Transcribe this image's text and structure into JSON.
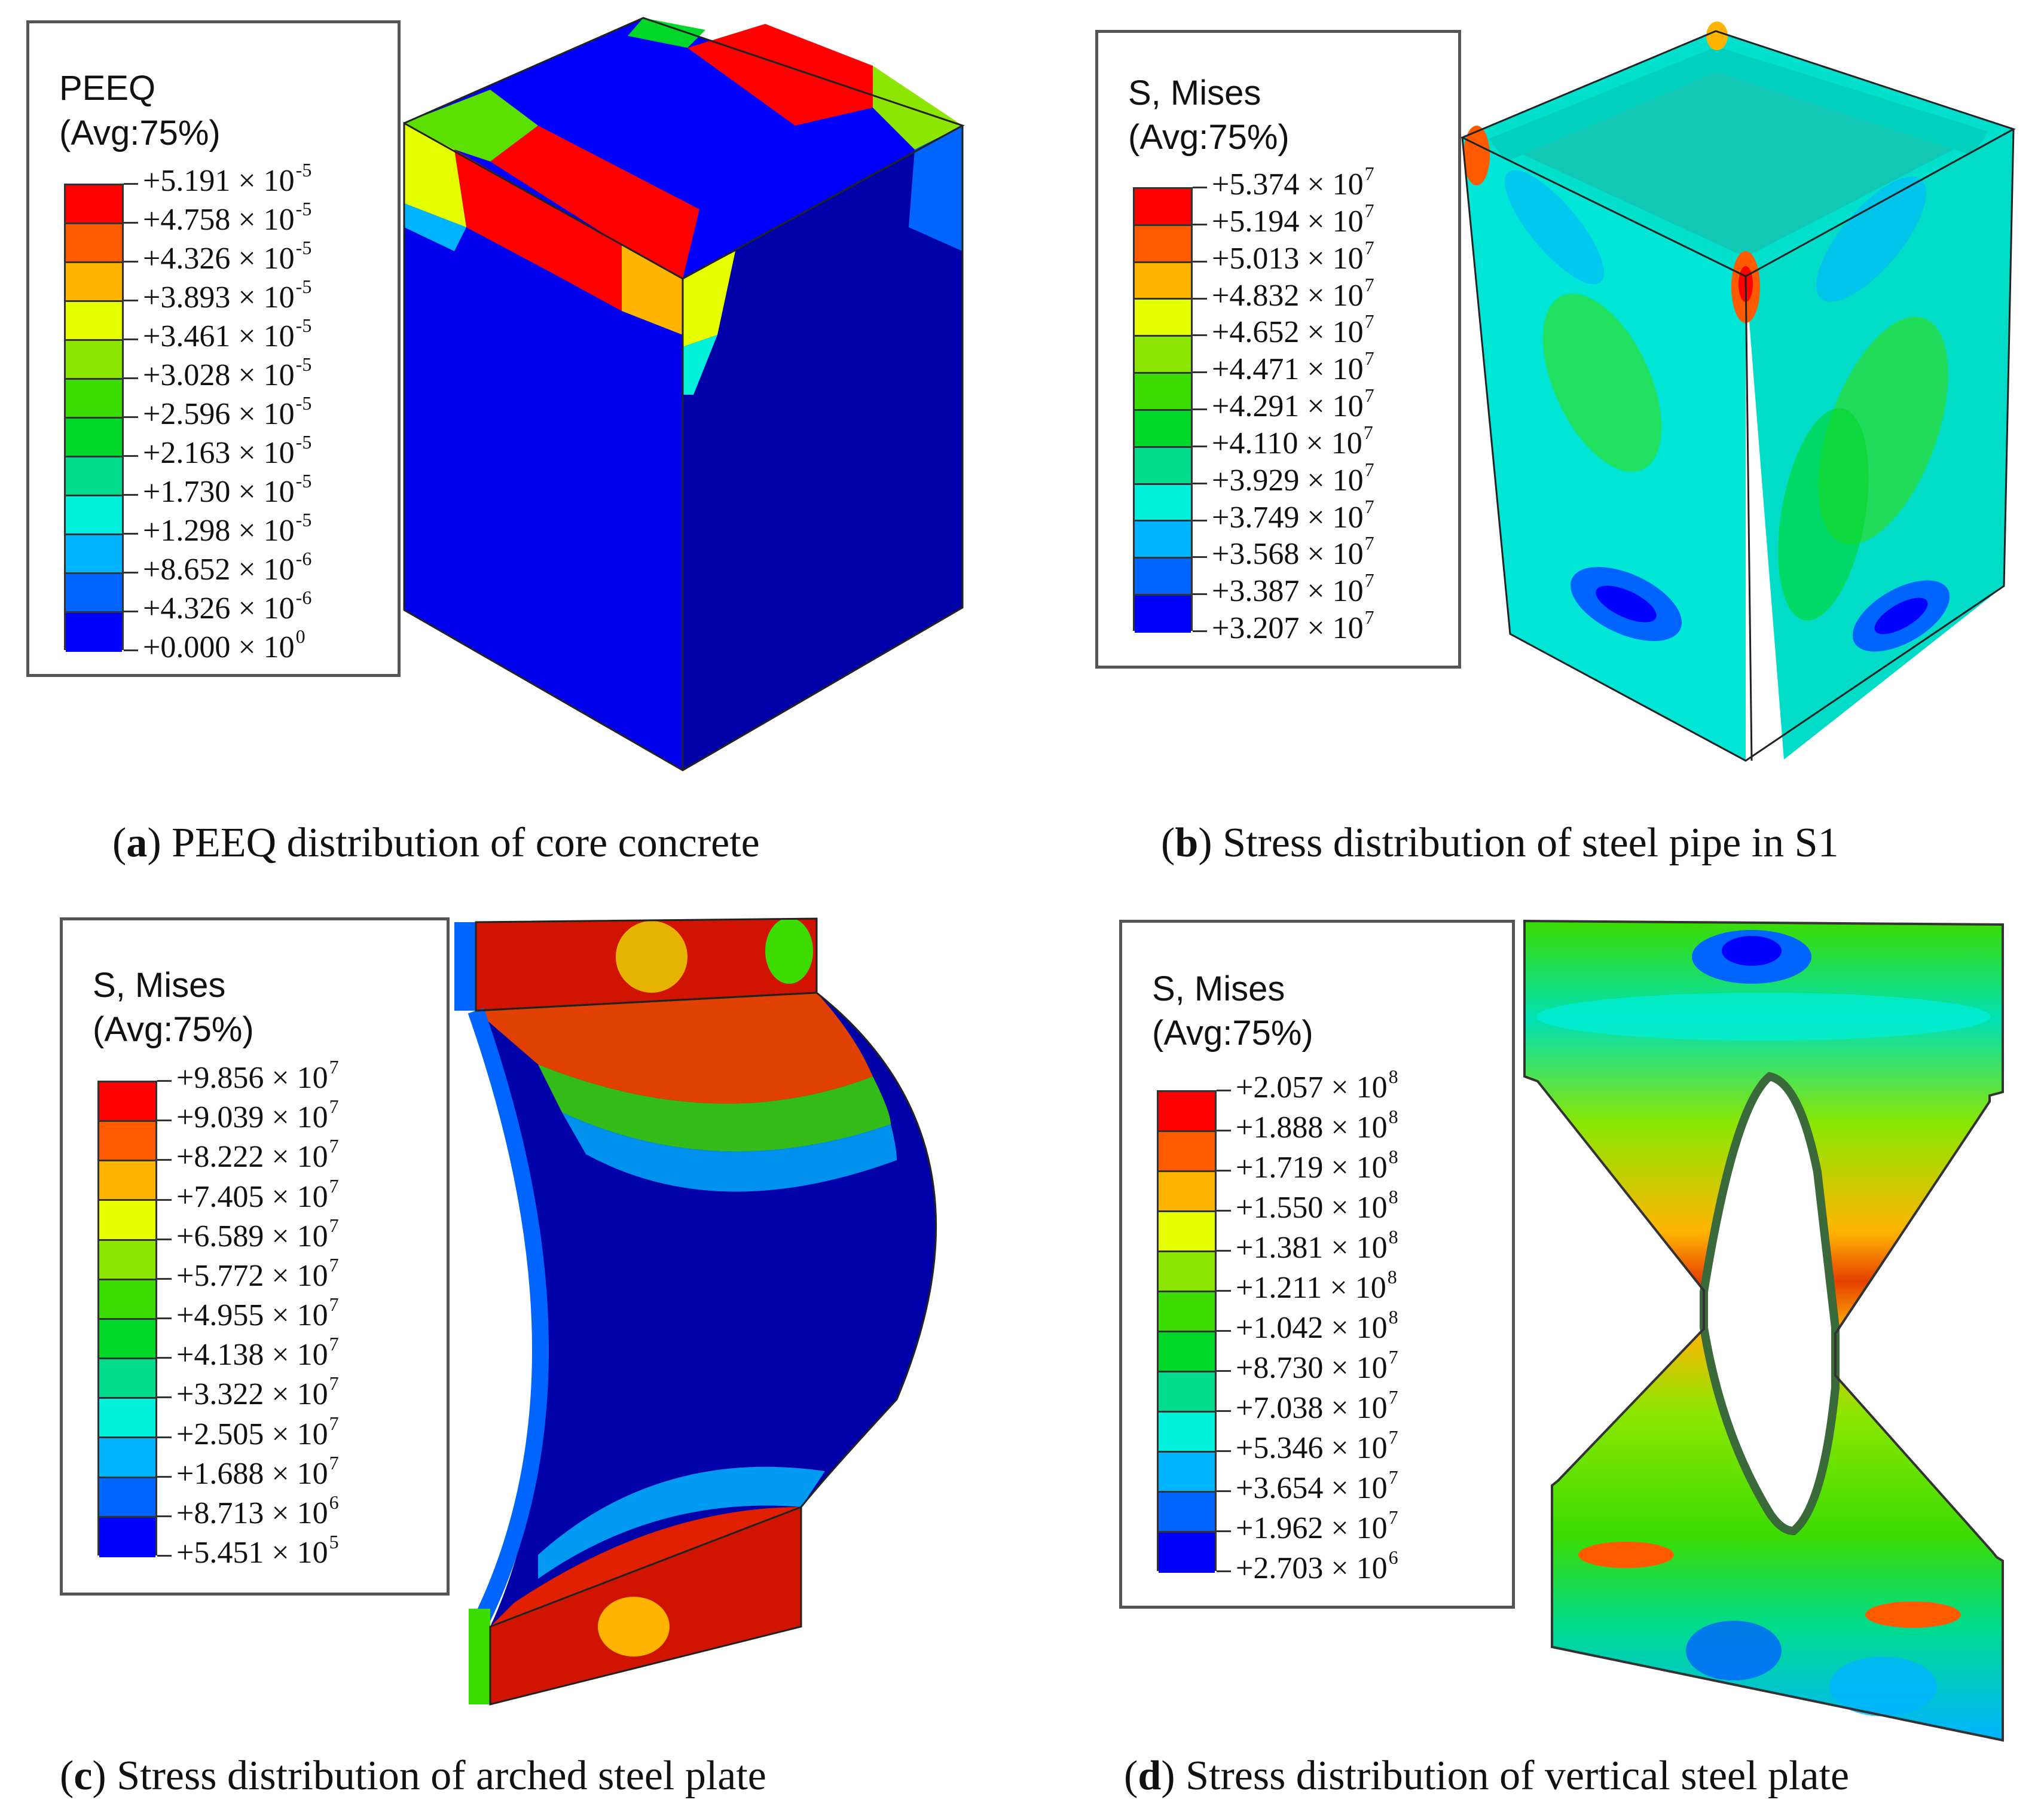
{
  "panels": [
    {
      "id": "a",
      "legend_title_1": "PEEQ",
      "legend_title_2": "(Avg:75%)",
      "caption_letter": "a",
      "caption_text": " PEEQ distribution of core concrete",
      "legend": [
        {
          "mantissa": "+5.191",
          "exp": "-5"
        },
        {
          "mantissa": "+4.758",
          "exp": "-5"
        },
        {
          "mantissa": "+4.326",
          "exp": "-5"
        },
        {
          "mantissa": "+3.893",
          "exp": "-5"
        },
        {
          "mantissa": "+3.461",
          "exp": "-5"
        },
        {
          "mantissa": "+3.028",
          "exp": "-5"
        },
        {
          "mantissa": "+2.596",
          "exp": "-5"
        },
        {
          "mantissa": "+2.163",
          "exp": "-5"
        },
        {
          "mantissa": "+1.730",
          "exp": "-5"
        },
        {
          "mantissa": "+1.298",
          "exp": "-5"
        },
        {
          "mantissa": "+8.652",
          "exp": "-6"
        },
        {
          "mantissa": "+4.326",
          "exp": "-6"
        },
        {
          "mantissa": "+0.000",
          "exp": "0"
        }
      ]
    },
    {
      "id": "b",
      "legend_title_1": "S, Mises",
      "legend_title_2": "(Avg:75%)",
      "caption_letter": "b",
      "caption_text": " Stress distribution of steel pipe in S1",
      "legend": [
        {
          "mantissa": "+5.374",
          "exp": "7"
        },
        {
          "mantissa": "+5.194",
          "exp": "7"
        },
        {
          "mantissa": "+5.013",
          "exp": "7"
        },
        {
          "mantissa": "+4.832",
          "exp": "7"
        },
        {
          "mantissa": "+4.652",
          "exp": "7"
        },
        {
          "mantissa": "+4.471",
          "exp": "7"
        },
        {
          "mantissa": "+4.291",
          "exp": "7"
        },
        {
          "mantissa": "+4.110",
          "exp": "7"
        },
        {
          "mantissa": "+3.929",
          "exp": "7"
        },
        {
          "mantissa": "+3.749",
          "exp": "7"
        },
        {
          "mantissa": "+3.568",
          "exp": "7"
        },
        {
          "mantissa": "+3.387",
          "exp": "7"
        },
        {
          "mantissa": "+3.207",
          "exp": "7"
        }
      ]
    },
    {
      "id": "c",
      "legend_title_1": "S, Mises",
      "legend_title_2": "(Avg:75%)",
      "caption_letter": "c",
      "caption_text": " Stress distribution of arched steel plate",
      "legend": [
        {
          "mantissa": "+9.856",
          "exp": "7"
        },
        {
          "mantissa": "+9.039",
          "exp": "7"
        },
        {
          "mantissa": "+8.222",
          "exp": "7"
        },
        {
          "mantissa": "+7.405",
          "exp": "7"
        },
        {
          "mantissa": "+6.589",
          "exp": "7"
        },
        {
          "mantissa": "+5.772",
          "exp": "7"
        },
        {
          "mantissa": "+4.955",
          "exp": "7"
        },
        {
          "mantissa": "+4.138",
          "exp": "7"
        },
        {
          "mantissa": "+3.322",
          "exp": "7"
        },
        {
          "mantissa": "+2.505",
          "exp": "7"
        },
        {
          "mantissa": "+1.688",
          "exp": "7"
        },
        {
          "mantissa": "+8.713",
          "exp": "6"
        },
        {
          "mantissa": "+5.451",
          "exp": "5"
        }
      ]
    },
    {
      "id": "d",
      "legend_title_1": "S, Mises",
      "legend_title_2": "(Avg:75%)",
      "caption_letter": "d",
      "caption_text": " Stress distribution of vertical steel plate",
      "legend": [
        {
          "mantissa": "+2.057",
          "exp": "8"
        },
        {
          "mantissa": "+1.888",
          "exp": "8"
        },
        {
          "mantissa": "+1.719",
          "exp": "8"
        },
        {
          "mantissa": "+1.550",
          "exp": "8"
        },
        {
          "mantissa": "+1.381",
          "exp": "8"
        },
        {
          "mantissa": "+1.211",
          "exp": "8"
        },
        {
          "mantissa": "+1.042",
          "exp": "8"
        },
        {
          "mantissa": "+8.730",
          "exp": "7"
        },
        {
          "mantissa": "+7.038",
          "exp": "7"
        },
        {
          "mantissa": "+5.346",
          "exp": "7"
        },
        {
          "mantissa": "+3.654",
          "exp": "7"
        },
        {
          "mantissa": "+1.962",
          "exp": "7"
        },
        {
          "mantissa": "+2.703",
          "exp": "6"
        }
      ]
    }
  ],
  "contour_colors": [
    "#ff0000",
    "#ff5a00",
    "#ffb400",
    "#e6ff00",
    "#8ce600",
    "#3cdc00",
    "#00d728",
    "#00dc8c",
    "#00f0dc",
    "#00b4ff",
    "#0064ff",
    "#0000ff"
  ],
  "times_symbol": " × 10"
}
